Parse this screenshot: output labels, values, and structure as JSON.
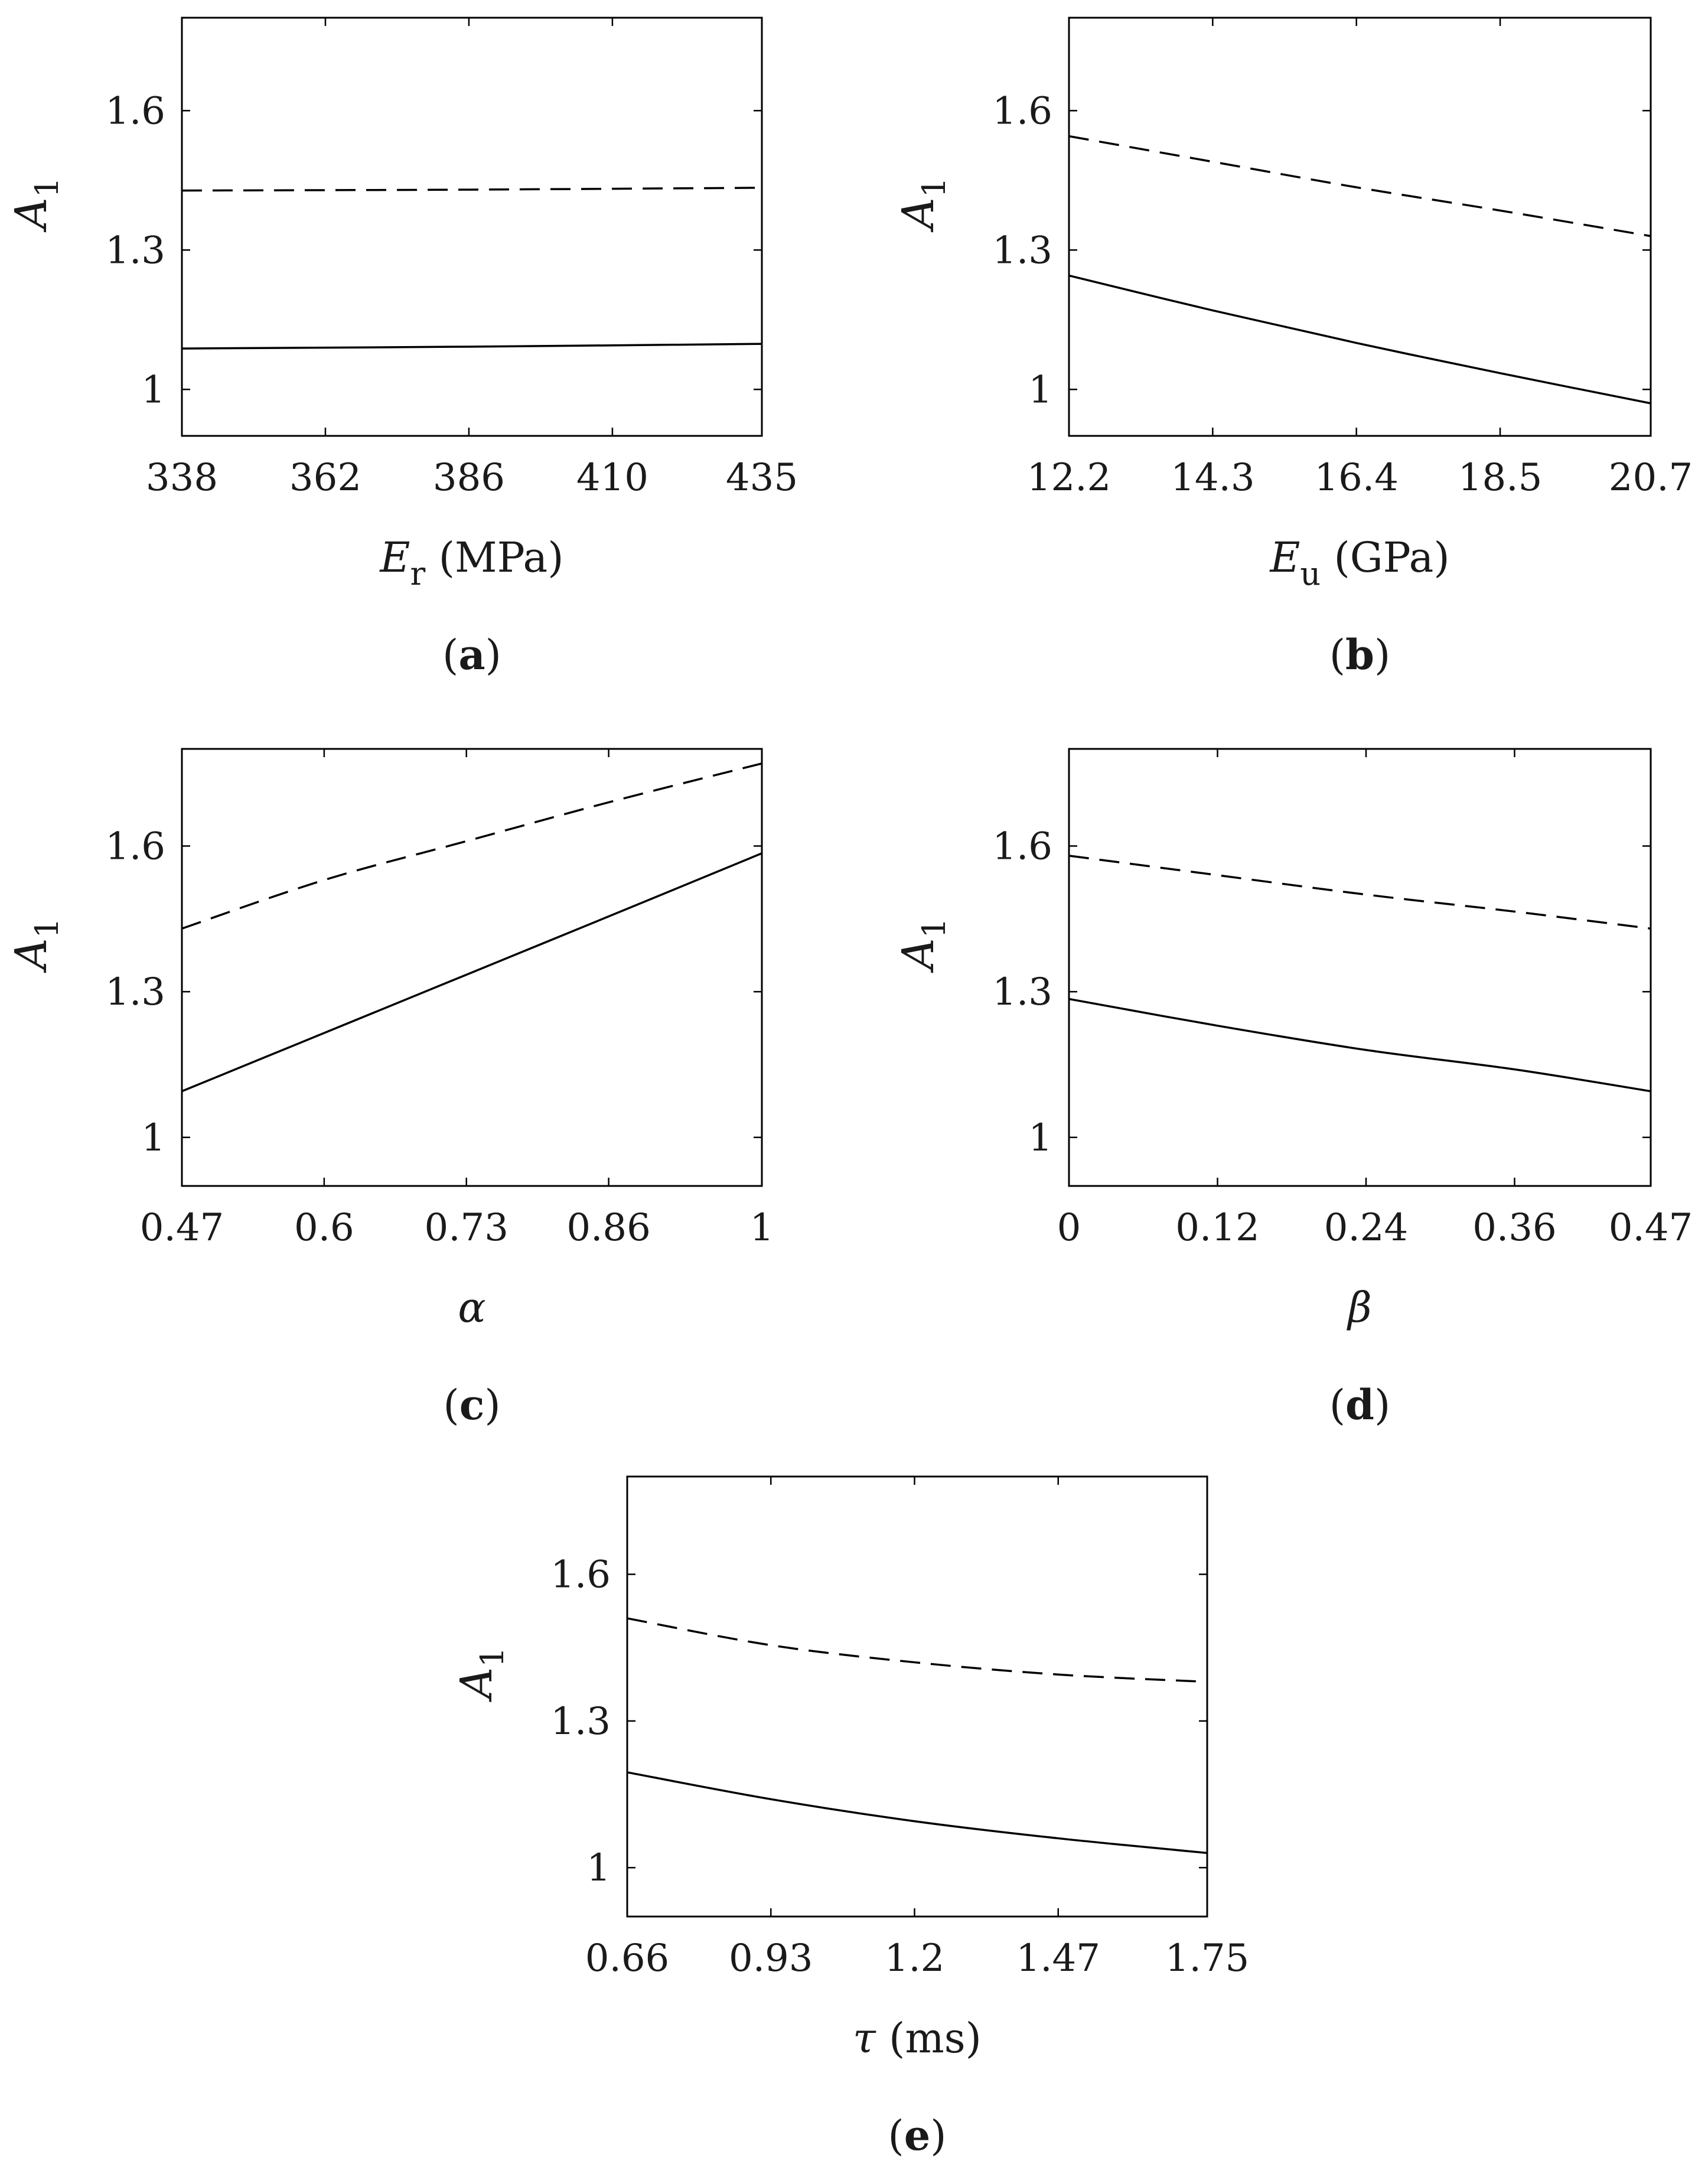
{
  "chart_data": [
    {
      "panel": "a",
      "type": "line",
      "ylabel": "A",
      "ylabel_sub": "1",
      "xlabel": {
        "sym": "E",
        "sub": "r",
        "unit": " (MPa)"
      },
      "xticks": [
        "338",
        "362",
        "386",
        "410",
        "435"
      ],
      "xtick_values": [
        338,
        362,
        386,
        410,
        435
      ],
      "yticks": [
        "1",
        "1.3",
        "1.6"
      ],
      "ytick_values": [
        1,
        1.3,
        1.6
      ],
      "xlim": [
        338,
        435
      ],
      "ylim": [
        0.9,
        1.8
      ],
      "series": [
        {
          "style": "solid",
          "x": [
            338,
            386,
            435
          ],
          "y": [
            1.088,
            1.092,
            1.098
          ]
        },
        {
          "style": "dashed",
          "x": [
            338,
            386,
            435
          ],
          "y": [
            1.428,
            1.43,
            1.434
          ]
        }
      ]
    },
    {
      "panel": "b",
      "type": "line",
      "ylabel": "A",
      "ylabel_sub": "1",
      "xlabel": {
        "sym": "E",
        "sub": "u",
        "unit": " (GPa)"
      },
      "xticks": [
        "12.2",
        "14.3",
        "16.4",
        "18.5",
        "20.7"
      ],
      "xtick_values": [
        12.2,
        14.3,
        16.4,
        18.5,
        20.7
      ],
      "yticks": [
        "1",
        "1.3",
        "1.6"
      ],
      "ytick_values": [
        1,
        1.3,
        1.6
      ],
      "xlim": [
        12.2,
        20.7
      ],
      "ylim": [
        0.9,
        1.8
      ],
      "series": [
        {
          "style": "solid",
          "x": [
            12.2,
            14.3,
            16.4,
            18.5,
            20.7
          ],
          "y": [
            1.245,
            1.17,
            1.1,
            1.035,
            0.97
          ]
        },
        {
          "style": "dashed",
          "x": [
            12.2,
            14.3,
            16.4,
            18.5,
            20.7
          ],
          "y": [
            1.545,
            1.49,
            1.435,
            1.385,
            1.33
          ]
        }
      ]
    },
    {
      "panel": "c",
      "type": "line",
      "ylabel": "A",
      "ylabel_sub": "1",
      "xlabel": {
        "sym": "α",
        "sub": "",
        "unit": ""
      },
      "xticks": [
        "0.47",
        "0.6",
        "0.73",
        "0.86",
        "1"
      ],
      "xtick_values": [
        0.47,
        0.6,
        0.73,
        0.86,
        1
      ],
      "yticks": [
        "1",
        "1.3",
        "1.6"
      ],
      "ytick_values": [
        1,
        1.3,
        1.6
      ],
      "xlim": [
        0.47,
        1
      ],
      "ylim": [
        0.9,
        1.8
      ],
      "series": [
        {
          "style": "solid",
          "x": [
            0.47,
            0.6,
            0.73,
            0.86,
            1.0
          ],
          "y": [
            1.095,
            1.215,
            1.335,
            1.455,
            1.585
          ]
        },
        {
          "style": "dashed",
          "x": [
            0.47,
            0.6,
            0.73,
            0.86,
            1.0
          ],
          "y": [
            1.43,
            1.53,
            1.61,
            1.69,
            1.77
          ]
        }
      ]
    },
    {
      "panel": "d",
      "type": "line",
      "ylabel": "A",
      "ylabel_sub": "1",
      "xlabel": {
        "sym": "β",
        "sub": "",
        "unit": ""
      },
      "xticks": [
        "0",
        "0.12",
        "0.24",
        "0.36",
        "0.47"
      ],
      "xtick_values": [
        0,
        0.12,
        0.24,
        0.36,
        0.47
      ],
      "yticks": [
        "1",
        "1.3",
        "1.6"
      ],
      "ytick_values": [
        1,
        1.3,
        1.6
      ],
      "xlim": [
        0,
        0.47
      ],
      "ylim": [
        0.9,
        1.8
      ],
      "series": [
        {
          "style": "solid",
          "x": [
            0,
            0.12,
            0.24,
            0.36,
            0.47
          ],
          "y": [
            1.285,
            1.23,
            1.18,
            1.14,
            1.095
          ]
        },
        {
          "style": "dashed",
          "x": [
            0,
            0.12,
            0.24,
            0.36,
            0.47
          ],
          "y": [
            1.58,
            1.54,
            1.5,
            1.465,
            1.43
          ]
        }
      ]
    },
    {
      "panel": "e",
      "type": "line",
      "ylabel": "A",
      "ylabel_sub": "1",
      "xlabel": {
        "sym": "τ",
        "sub": "",
        "unit": " (ms)"
      },
      "xticks": [
        "0.66",
        "0.93",
        "1.2",
        "1.47",
        "1.75"
      ],
      "xtick_values": [
        0.66,
        0.93,
        1.2,
        1.47,
        1.75
      ],
      "yticks": [
        "1",
        "1.3",
        "1.6"
      ],
      "ytick_values": [
        1,
        1.3,
        1.6
      ],
      "xlim": [
        0.66,
        1.75
      ],
      "ylim": [
        0.9,
        1.8
      ],
      "series": [
        {
          "style": "solid",
          "x": [
            0.66,
            0.93,
            1.2,
            1.47,
            1.75
          ],
          "y": [
            1.195,
            1.14,
            1.095,
            1.06,
            1.03
          ]
        },
        {
          "style": "dashed",
          "x": [
            0.66,
            0.93,
            1.2,
            1.47,
            1.75
          ],
          "y": [
            1.51,
            1.455,
            1.42,
            1.395,
            1.38
          ]
        }
      ]
    }
  ]
}
